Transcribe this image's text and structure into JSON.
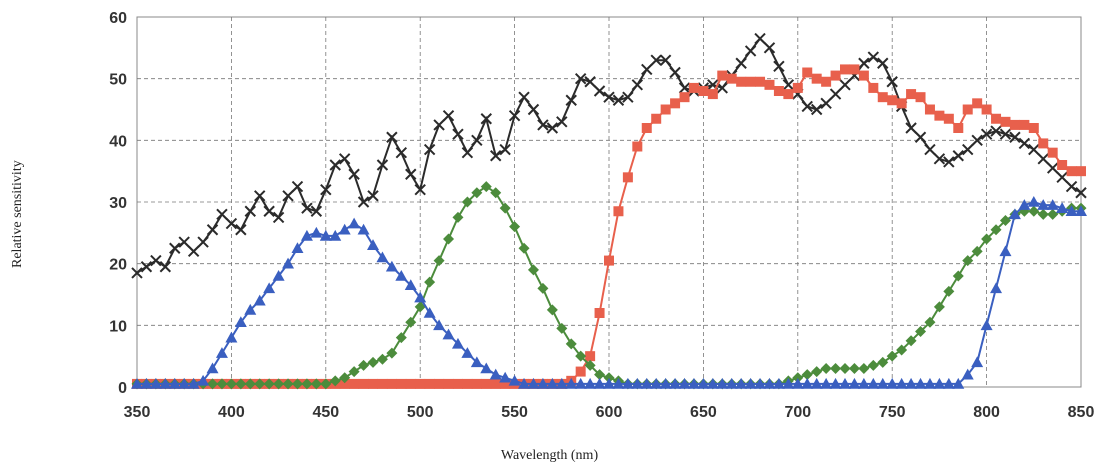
{
  "chart_data": {
    "type": "line",
    "title": "",
    "xlabel": "Wavelength (nm)",
    "ylabel": "Relative sensitivity",
    "xlim": [
      350,
      850
    ],
    "ylim": [
      0,
      60
    ],
    "xticks": [
      350,
      400,
      450,
      500,
      550,
      600,
      650,
      700,
      750,
      800,
      850
    ],
    "yticks": [
      0,
      10,
      20,
      30,
      40,
      50,
      60
    ],
    "grid": true,
    "grid_style": "dashed",
    "legend": "none",
    "series": [
      {
        "color": "#2b2b2b",
        "marker": "x",
        "x": [
          350,
          355,
          360,
          365,
          370,
          375,
          380,
          385,
          390,
          395,
          400,
          405,
          410,
          415,
          420,
          425,
          430,
          435,
          440,
          445,
          450,
          455,
          460,
          465,
          470,
          475,
          480,
          485,
          490,
          495,
          500,
          505,
          510,
          515,
          520,
          525,
          530,
          535,
          540,
          545,
          550,
          555,
          560,
          565,
          570,
          575,
          580,
          585,
          590,
          595,
          600,
          605,
          610,
          615,
          620,
          625,
          630,
          635,
          640,
          645,
          650,
          655,
          660,
          665,
          670,
          675,
          680,
          685,
          690,
          695,
          700,
          705,
          710,
          715,
          720,
          725,
          730,
          735,
          740,
          745,
          750,
          755,
          760,
          765,
          770,
          775,
          780,
          785,
          790,
          795,
          800,
          805,
          810,
          815,
          820,
          825,
          830,
          835,
          840,
          845,
          850
        ],
        "y": [
          18.5,
          19.5,
          20.5,
          19.5,
          22.5,
          23.5,
          22,
          23.5,
          25.5,
          28,
          26.5,
          25.5,
          28.5,
          31,
          28.5,
          27.5,
          31,
          32.5,
          29,
          28.5,
          32,
          36,
          37,
          34.5,
          30,
          31,
          36,
          40.5,
          38,
          34.5,
          32,
          38.5,
          42.5,
          44,
          41,
          38,
          40,
          43.5,
          37.5,
          38.5,
          44,
          47,
          45,
          42.5,
          42,
          43,
          46.5,
          50,
          49.5,
          48,
          47,
          46.5,
          47,
          49,
          51.5,
          53,
          53,
          51,
          48.5,
          48,
          48.5,
          49,
          48.5,
          50.5,
          52.5,
          54.5,
          56.5,
          55,
          52,
          49,
          47.5,
          45.5,
          45,
          46,
          47.5,
          49,
          50.5,
          52.5,
          53.5,
          52.5,
          49.5,
          45.5,
          42,
          40.5,
          38.5,
          37,
          36.5,
          37.5,
          38.5,
          40,
          41,
          41.5,
          41,
          40.5,
          39.5,
          38.5,
          37,
          35.5,
          34,
          32.5,
          31.5
        ]
      },
      {
        "color": "#e8604c",
        "marker": "square",
        "x": [
          350,
          355,
          360,
          365,
          370,
          375,
          380,
          385,
          390,
          395,
          400,
          405,
          410,
          415,
          420,
          425,
          430,
          435,
          440,
          445,
          450,
          455,
          460,
          465,
          470,
          475,
          480,
          485,
          490,
          495,
          500,
          505,
          510,
          515,
          520,
          525,
          530,
          535,
          540,
          545,
          550,
          555,
          560,
          565,
          570,
          575,
          580,
          585,
          590,
          595,
          600,
          605,
          610,
          615,
          620,
          625,
          630,
          635,
          640,
          645,
          650,
          655,
          660,
          665,
          670,
          675,
          680,
          685,
          690,
          695,
          700,
          705,
          710,
          715,
          720,
          725,
          730,
          735,
          740,
          745,
          750,
          755,
          760,
          765,
          770,
          775,
          780,
          785,
          790,
          795,
          800,
          805,
          810,
          815,
          820,
          825,
          830,
          835,
          840,
          845,
          850
        ],
        "y": [
          0.5,
          0.5,
          0.5,
          0.5,
          0.5,
          0.5,
          0.5,
          0.5,
          0.5,
          0.5,
          0.5,
          0.5,
          0.5,
          0.5,
          0.5,
          0.5,
          0.5,
          0.5,
          0.5,
          0.5,
          0.5,
          0.5,
          0.5,
          0.5,
          0.5,
          0.5,
          0.5,
          0.5,
          0.5,
          0.5,
          0.5,
          0.5,
          0.5,
          0.5,
          0.5,
          0.5,
          0.5,
          0.5,
          0.5,
          0.5,
          0.5,
          0.5,
          0.5,
          0.5,
          0.5,
          0.5,
          1,
          2.5,
          5,
          12,
          20.5,
          28.5,
          34,
          39,
          42,
          43.5,
          45,
          46,
          47,
          48.5,
          48,
          47.5,
          50.5,
          50,
          49.5,
          49.5,
          49.5,
          49,
          48,
          47.5,
          48.5,
          51,
          50,
          49.5,
          50.5,
          51.5,
          51.5,
          50.5,
          48.5,
          47,
          46.5,
          46,
          47.5,
          47,
          45,
          44,
          43.5,
          42,
          45,
          46,
          45,
          43.5,
          43,
          42.5,
          42.5,
          42,
          39.5,
          38,
          36,
          35,
          35
        ]
      },
      {
        "color": "#4c8c3c",
        "marker": "diamond",
        "x": [
          350,
          355,
          360,
          365,
          370,
          375,
          380,
          385,
          390,
          395,
          400,
          405,
          410,
          415,
          420,
          425,
          430,
          435,
          440,
          445,
          450,
          455,
          460,
          465,
          470,
          475,
          480,
          485,
          490,
          495,
          500,
          505,
          510,
          515,
          520,
          525,
          530,
          535,
          540,
          545,
          550,
          555,
          560,
          565,
          570,
          575,
          580,
          585,
          590,
          595,
          600,
          605,
          610,
          615,
          620,
          625,
          630,
          635,
          640,
          645,
          650,
          655,
          660,
          665,
          670,
          675,
          680,
          685,
          690,
          695,
          700,
          705,
          710,
          715,
          720,
          725,
          730,
          735,
          740,
          745,
          750,
          755,
          760,
          765,
          770,
          775,
          780,
          785,
          790,
          795,
          800,
          805,
          810,
          815,
          820,
          825,
          830,
          835,
          840,
          845,
          850
        ],
        "y": [
          0.5,
          0.5,
          0.5,
          0.5,
          0.5,
          0.5,
          0.5,
          0.5,
          0.5,
          0.5,
          0.5,
          0.5,
          0.5,
          0.5,
          0.5,
          0.5,
          0.5,
          0.5,
          0.5,
          0.5,
          0.5,
          1,
          1.5,
          2.5,
          3.5,
          4,
          4.5,
          5.5,
          8,
          10.5,
          13,
          17,
          20.5,
          24,
          27.5,
          30,
          31.5,
          32.5,
          31.5,
          29,
          26,
          22.5,
          19,
          16,
          12.5,
          9.5,
          7,
          5,
          3.5,
          2,
          1.5,
          1,
          0.5,
          0.5,
          0.5,
          0.5,
          0.5,
          0.5,
          0.5,
          0.5,
          0.5,
          0.5,
          0.5,
          0.5,
          0.5,
          0.5,
          0.5,
          0.5,
          0.5,
          1,
          1.5,
          2,
          2.5,
          3,
          3,
          3,
          3,
          3,
          3.5,
          4,
          5,
          6,
          7.5,
          9,
          10.5,
          13,
          15.5,
          18,
          20.5,
          22,
          24,
          25.5,
          27,
          28,
          28.5,
          28.5,
          28,
          28,
          28.5,
          29,
          29
        ]
      },
      {
        "color": "#3a5fc0",
        "marker": "triangle",
        "x": [
          350,
          355,
          360,
          365,
          370,
          375,
          380,
          385,
          390,
          395,
          400,
          405,
          410,
          415,
          420,
          425,
          430,
          435,
          440,
          445,
          450,
          455,
          460,
          465,
          470,
          475,
          480,
          485,
          490,
          495,
          500,
          505,
          510,
          515,
          520,
          525,
          530,
          535,
          540,
          545,
          550,
          555,
          560,
          565,
          570,
          575,
          580,
          585,
          590,
          595,
          600,
          605,
          610,
          615,
          620,
          625,
          630,
          635,
          640,
          645,
          650,
          655,
          660,
          665,
          670,
          675,
          680,
          685,
          690,
          695,
          700,
          705,
          710,
          715,
          720,
          725,
          730,
          735,
          740,
          745,
          750,
          755,
          760,
          765,
          770,
          775,
          780,
          785,
          790,
          795,
          800,
          805,
          810,
          815,
          820,
          825,
          830,
          835,
          840,
          845,
          850
        ],
        "y": [
          0.5,
          0.5,
          0.5,
          0.5,
          0.5,
          0.5,
          0.5,
          1,
          3,
          5.5,
          8,
          10.5,
          12.5,
          14,
          16,
          18,
          20,
          22.5,
          24.5,
          25,
          24.5,
          24.5,
          25.5,
          26.5,
          25.5,
          23,
          21,
          19.5,
          18,
          16.5,
          14.5,
          12,
          10,
          8.5,
          7,
          5.5,
          4,
          3,
          2,
          1.5,
          1,
          0.5,
          0.5,
          0.5,
          0.5,
          0.5,
          0.5,
          0.5,
          0.5,
          0.5,
          0.5,
          0.5,
          0.5,
          0.5,
          0.5,
          0.5,
          0.5,
          0.5,
          0.5,
          0.5,
          0.5,
          0.5,
          0.5,
          0.5,
          0.5,
          0.5,
          0.5,
          0.5,
          0.5,
          0.5,
          0.5,
          0.5,
          0.5,
          0.5,
          0.5,
          0.5,
          0.5,
          0.5,
          0.5,
          0.5,
          0.5,
          0.5,
          0.5,
          0.5,
          0.5,
          0.5,
          0.5,
          0.5,
          2,
          4,
          10,
          16,
          22,
          28,
          29.5,
          30,
          29.5,
          29.5,
          29,
          28.5,
          28.5
        ]
      }
    ]
  }
}
